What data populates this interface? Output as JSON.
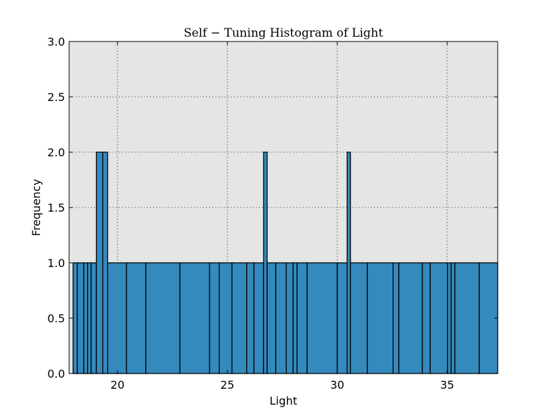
{
  "chart_data": {
    "type": "bar",
    "title": "Self − Tuning Histogram of Light",
    "xlabel": "Light",
    "ylabel": "Frequency",
    "xlim": [
      17.8,
      37.3
    ],
    "ylim": [
      0,
      3.0
    ],
    "xticks": [
      20,
      25,
      30,
      35
    ],
    "yticks": [
      0.0,
      0.5,
      1.0,
      1.5,
      2.0,
      2.5,
      3.0
    ],
    "ytick_labels": [
      "0.0",
      "0.5",
      "1.0",
      "1.5",
      "2.0",
      "2.5",
      "3.0"
    ],
    "grid": true,
    "bar_color": "#348abd",
    "background_color": "#e5e5e5",
    "bins": [
      {
        "x0": 17.98,
        "x1": 18.17,
        "value": 1
      },
      {
        "x0": 18.17,
        "x1": 18.47,
        "value": 1
      },
      {
        "x0": 18.47,
        "x1": 18.64,
        "value": 1
      },
      {
        "x0": 18.64,
        "x1": 18.8,
        "value": 1
      },
      {
        "x0": 18.8,
        "x1": 19.04,
        "value": 1
      },
      {
        "x0": 19.04,
        "x1": 19.33,
        "value": 2
      },
      {
        "x0": 19.33,
        "x1": 19.55,
        "value": 2
      },
      {
        "x0": 19.55,
        "x1": 20.41,
        "value": 1
      },
      {
        "x0": 20.41,
        "x1": 21.29,
        "value": 1
      },
      {
        "x0": 21.29,
        "x1": 22.84,
        "value": 1
      },
      {
        "x0": 22.84,
        "x1": 24.19,
        "value": 1
      },
      {
        "x0": 24.19,
        "x1": 24.63,
        "value": 1
      },
      {
        "x0": 24.63,
        "x1": 25.21,
        "value": 1
      },
      {
        "x0": 25.21,
        "x1": 25.88,
        "value": 1
      },
      {
        "x0": 25.88,
        "x1": 26.21,
        "value": 1
      },
      {
        "x0": 26.21,
        "x1": 26.65,
        "value": 1
      },
      {
        "x0": 26.65,
        "x1": 26.81,
        "value": 2
      },
      {
        "x0": 26.81,
        "x1": 27.2,
        "value": 1
      },
      {
        "x0": 27.2,
        "x1": 27.68,
        "value": 1
      },
      {
        "x0": 27.68,
        "x1": 27.99,
        "value": 1
      },
      {
        "x0": 27.99,
        "x1": 28.17,
        "value": 1
      },
      {
        "x0": 28.17,
        "x1": 28.63,
        "value": 1
      },
      {
        "x0": 28.63,
        "x1": 30.0,
        "value": 1
      },
      {
        "x0": 30.0,
        "x1": 30.45,
        "value": 1
      },
      {
        "x0": 30.45,
        "x1": 30.6,
        "value": 2
      },
      {
        "x0": 30.6,
        "x1": 31.37,
        "value": 1
      },
      {
        "x0": 31.37,
        "x1": 32.54,
        "value": 1
      },
      {
        "x0": 32.54,
        "x1": 32.8,
        "value": 1
      },
      {
        "x0": 32.8,
        "x1": 33.87,
        "value": 1
      },
      {
        "x0": 33.87,
        "x1": 34.23,
        "value": 1
      },
      {
        "x0": 34.23,
        "x1": 35.02,
        "value": 1
      },
      {
        "x0": 35.02,
        "x1": 35.18,
        "value": 1
      },
      {
        "x0": 35.18,
        "x1": 35.35,
        "value": 1
      },
      {
        "x0": 35.35,
        "x1": 36.46,
        "value": 1
      },
      {
        "x0": 36.46,
        "x1": 37.3,
        "value": 1
      }
    ]
  }
}
